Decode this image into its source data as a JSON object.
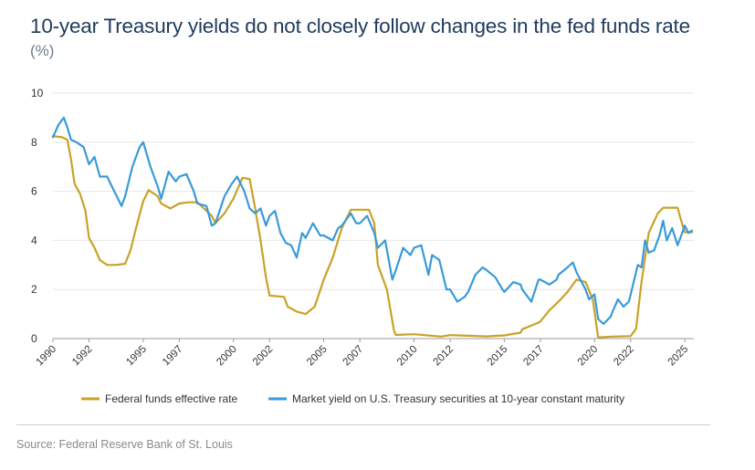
{
  "chart_data": {
    "type": "line",
    "title": "10-year Treasury yields do not closely follow changes in the fed funds rate",
    "unit_label": "(%)",
    "xlabel": "",
    "ylabel": "",
    "ylim": [
      0,
      10
    ],
    "xlim": [
      1990,
      2025.5
    ],
    "y_ticks": [
      0,
      2,
      4,
      6,
      8,
      10
    ],
    "x_ticks": [
      "1990",
      "1992",
      "1995",
      "1997",
      "2000",
      "2002",
      "2005",
      "2007",
      "2010",
      "2012",
      "2015",
      "2017",
      "2020",
      "2022",
      "2025"
    ],
    "grid": true,
    "legend_position": "bottom",
    "colors": {
      "fed_funds": "#c9a227",
      "treasury_10y": "#3a9ad9"
    },
    "series": [
      {
        "name": "Federal funds effective rate",
        "color": "#c9a227",
        "points": [
          [
            1990.0,
            8.25
          ],
          [
            1990.5,
            8.2
          ],
          [
            1990.8,
            8.1
          ],
          [
            1991.0,
            7.3
          ],
          [
            1991.2,
            6.3
          ],
          [
            1991.5,
            5.9
          ],
          [
            1991.8,
            5.2
          ],
          [
            1992.0,
            4.1
          ],
          [
            1992.3,
            3.7
          ],
          [
            1992.6,
            3.2
          ],
          [
            1993.0,
            3.0
          ],
          [
            1993.5,
            3.0
          ],
          [
            1994.0,
            3.05
          ],
          [
            1994.3,
            3.6
          ],
          [
            1994.6,
            4.5
          ],
          [
            1995.0,
            5.6
          ],
          [
            1995.3,
            6.05
          ],
          [
            1995.8,
            5.8
          ],
          [
            1996.0,
            5.5
          ],
          [
            1996.5,
            5.3
          ],
          [
            1997.0,
            5.5
          ],
          [
            1997.5,
            5.55
          ],
          [
            1998.0,
            5.55
          ],
          [
            1998.8,
            5.0
          ],
          [
            1999.0,
            4.7
          ],
          [
            1999.5,
            5.1
          ],
          [
            2000.0,
            5.7
          ],
          [
            2000.5,
            6.55
          ],
          [
            2000.9,
            6.5
          ],
          [
            2001.2,
            5.3
          ],
          [
            2001.5,
            4.0
          ],
          [
            2001.8,
            2.5
          ],
          [
            2002.0,
            1.75
          ],
          [
            2002.8,
            1.7
          ],
          [
            2003.0,
            1.3
          ],
          [
            2003.5,
            1.1
          ],
          [
            2004.0,
            1.0
          ],
          [
            2004.5,
            1.3
          ],
          [
            2005.0,
            2.4
          ],
          [
            2005.5,
            3.3
          ],
          [
            2006.0,
            4.5
          ],
          [
            2006.5,
            5.25
          ],
          [
            2007.5,
            5.25
          ],
          [
            2007.8,
            4.7
          ],
          [
            2008.0,
            3.0
          ],
          [
            2008.5,
            2.0
          ],
          [
            2008.9,
            0.3
          ],
          [
            2009.0,
            0.15
          ],
          [
            2010.0,
            0.18
          ],
          [
            2011.5,
            0.08
          ],
          [
            2012.0,
            0.14
          ],
          [
            2014.0,
            0.09
          ],
          [
            2015.0,
            0.13
          ],
          [
            2015.9,
            0.24
          ],
          [
            2016.0,
            0.38
          ],
          [
            2016.9,
            0.65
          ],
          [
            2017.0,
            0.7
          ],
          [
            2017.5,
            1.15
          ],
          [
            2018.0,
            1.5
          ],
          [
            2018.5,
            1.9
          ],
          [
            2019.0,
            2.4
          ],
          [
            2019.5,
            2.3
          ],
          [
            2019.9,
            1.6
          ],
          [
            2020.2,
            0.05
          ],
          [
            2021.0,
            0.08
          ],
          [
            2022.0,
            0.1
          ],
          [
            2022.3,
            0.4
          ],
          [
            2022.6,
            2.3
          ],
          [
            2023.0,
            4.3
          ],
          [
            2023.5,
            5.1
          ],
          [
            2023.8,
            5.33
          ],
          [
            2024.6,
            5.33
          ],
          [
            2024.8,
            4.8
          ],
          [
            2025.0,
            4.33
          ],
          [
            2025.4,
            4.33
          ]
        ]
      },
      {
        "name": "Market yield on U.S. Treasury securities at 10-year constant maturity",
        "color": "#3a9ad9",
        "points": [
          [
            1990.0,
            8.2
          ],
          [
            1990.3,
            8.7
          ],
          [
            1990.6,
            9.0
          ],
          [
            1990.8,
            8.6
          ],
          [
            1991.0,
            8.1
          ],
          [
            1991.3,
            8.0
          ],
          [
            1991.7,
            7.8
          ],
          [
            1992.0,
            7.1
          ],
          [
            1992.3,
            7.4
          ],
          [
            1992.6,
            6.6
          ],
          [
            1993.0,
            6.6
          ],
          [
            1993.4,
            6.0
          ],
          [
            1993.8,
            5.4
          ],
          [
            1994.0,
            5.8
          ],
          [
            1994.4,
            7.0
          ],
          [
            1994.8,
            7.8
          ],
          [
            1995.0,
            8.0
          ],
          [
            1995.4,
            7.0
          ],
          [
            1995.8,
            6.2
          ],
          [
            1996.0,
            5.7
          ],
          [
            1996.4,
            6.8
          ],
          [
            1996.8,
            6.4
          ],
          [
            1997.0,
            6.6
          ],
          [
            1997.4,
            6.7
          ],
          [
            1997.8,
            6.0
          ],
          [
            1998.0,
            5.5
          ],
          [
            1998.5,
            5.4
          ],
          [
            1998.8,
            4.6
          ],
          [
            1999.0,
            4.7
          ],
          [
            1999.5,
            5.8
          ],
          [
            1999.9,
            6.3
          ],
          [
            2000.2,
            6.6
          ],
          [
            2000.6,
            6.0
          ],
          [
            2000.9,
            5.3
          ],
          [
            2001.2,
            5.1
          ],
          [
            2001.5,
            5.3
          ],
          [
            2001.8,
            4.6
          ],
          [
            2002.0,
            5.0
          ],
          [
            2002.3,
            5.2
          ],
          [
            2002.6,
            4.3
          ],
          [
            2002.9,
            3.9
          ],
          [
            2003.2,
            3.8
          ],
          [
            2003.5,
            3.3
          ],
          [
            2003.8,
            4.3
          ],
          [
            2004.0,
            4.1
          ],
          [
            2004.4,
            4.7
          ],
          [
            2004.8,
            4.2
          ],
          [
            2005.0,
            4.2
          ],
          [
            2005.5,
            4.0
          ],
          [
            2005.8,
            4.5
          ],
          [
            2006.0,
            4.6
          ],
          [
            2006.5,
            5.1
          ],
          [
            2006.8,
            4.7
          ],
          [
            2007.0,
            4.7
          ],
          [
            2007.4,
            5.0
          ],
          [
            2007.8,
            4.3
          ],
          [
            2008.0,
            3.7
          ],
          [
            2008.4,
            4.0
          ],
          [
            2008.8,
            2.4
          ],
          [
            2009.0,
            2.8
          ],
          [
            2009.4,
            3.7
          ],
          [
            2009.8,
            3.4
          ],
          [
            2010.0,
            3.7
          ],
          [
            2010.4,
            3.8
          ],
          [
            2010.8,
            2.6
          ],
          [
            2011.0,
            3.4
          ],
          [
            2011.4,
            3.2
          ],
          [
            2011.8,
            2.0
          ],
          [
            2012.0,
            2.0
          ],
          [
            2012.4,
            1.5
          ],
          [
            2012.8,
            1.7
          ],
          [
            2013.0,
            1.9
          ],
          [
            2013.4,
            2.6
          ],
          [
            2013.8,
            2.9
          ],
          [
            2014.0,
            2.8
          ],
          [
            2014.5,
            2.5
          ],
          [
            2014.9,
            2.0
          ],
          [
            2015.0,
            1.9
          ],
          [
            2015.5,
            2.3
          ],
          [
            2015.9,
            2.2
          ],
          [
            2016.0,
            2.0
          ],
          [
            2016.5,
            1.5
          ],
          [
            2016.9,
            2.4
          ],
          [
            2017.0,
            2.4
          ],
          [
            2017.5,
            2.2
          ],
          [
            2017.9,
            2.4
          ],
          [
            2018.0,
            2.6
          ],
          [
            2018.5,
            2.9
          ],
          [
            2018.8,
            3.1
          ],
          [
            2019.0,
            2.7
          ],
          [
            2019.5,
            2.0
          ],
          [
            2019.7,
            1.6
          ],
          [
            2020.0,
            1.8
          ],
          [
            2020.2,
            0.8
          ],
          [
            2020.5,
            0.6
          ],
          [
            2020.9,
            0.9
          ],
          [
            2021.0,
            1.1
          ],
          [
            2021.3,
            1.6
          ],
          [
            2021.6,
            1.3
          ],
          [
            2021.9,
            1.5
          ],
          [
            2022.0,
            1.8
          ],
          [
            2022.4,
            3.0
          ],
          [
            2022.6,
            2.9
          ],
          [
            2022.8,
            4.0
          ],
          [
            2023.0,
            3.5
          ],
          [
            2023.3,
            3.6
          ],
          [
            2023.6,
            4.2
          ],
          [
            2023.8,
            4.8
          ],
          [
            2024.0,
            4.0
          ],
          [
            2024.3,
            4.5
          ],
          [
            2024.6,
            3.8
          ],
          [
            2024.8,
            4.2
          ],
          [
            2025.0,
            4.6
          ],
          [
            2025.2,
            4.3
          ],
          [
            2025.4,
            4.4
          ]
        ]
      }
    ]
  },
  "source": "Source: Federal Reserve Bank of St. Louis"
}
